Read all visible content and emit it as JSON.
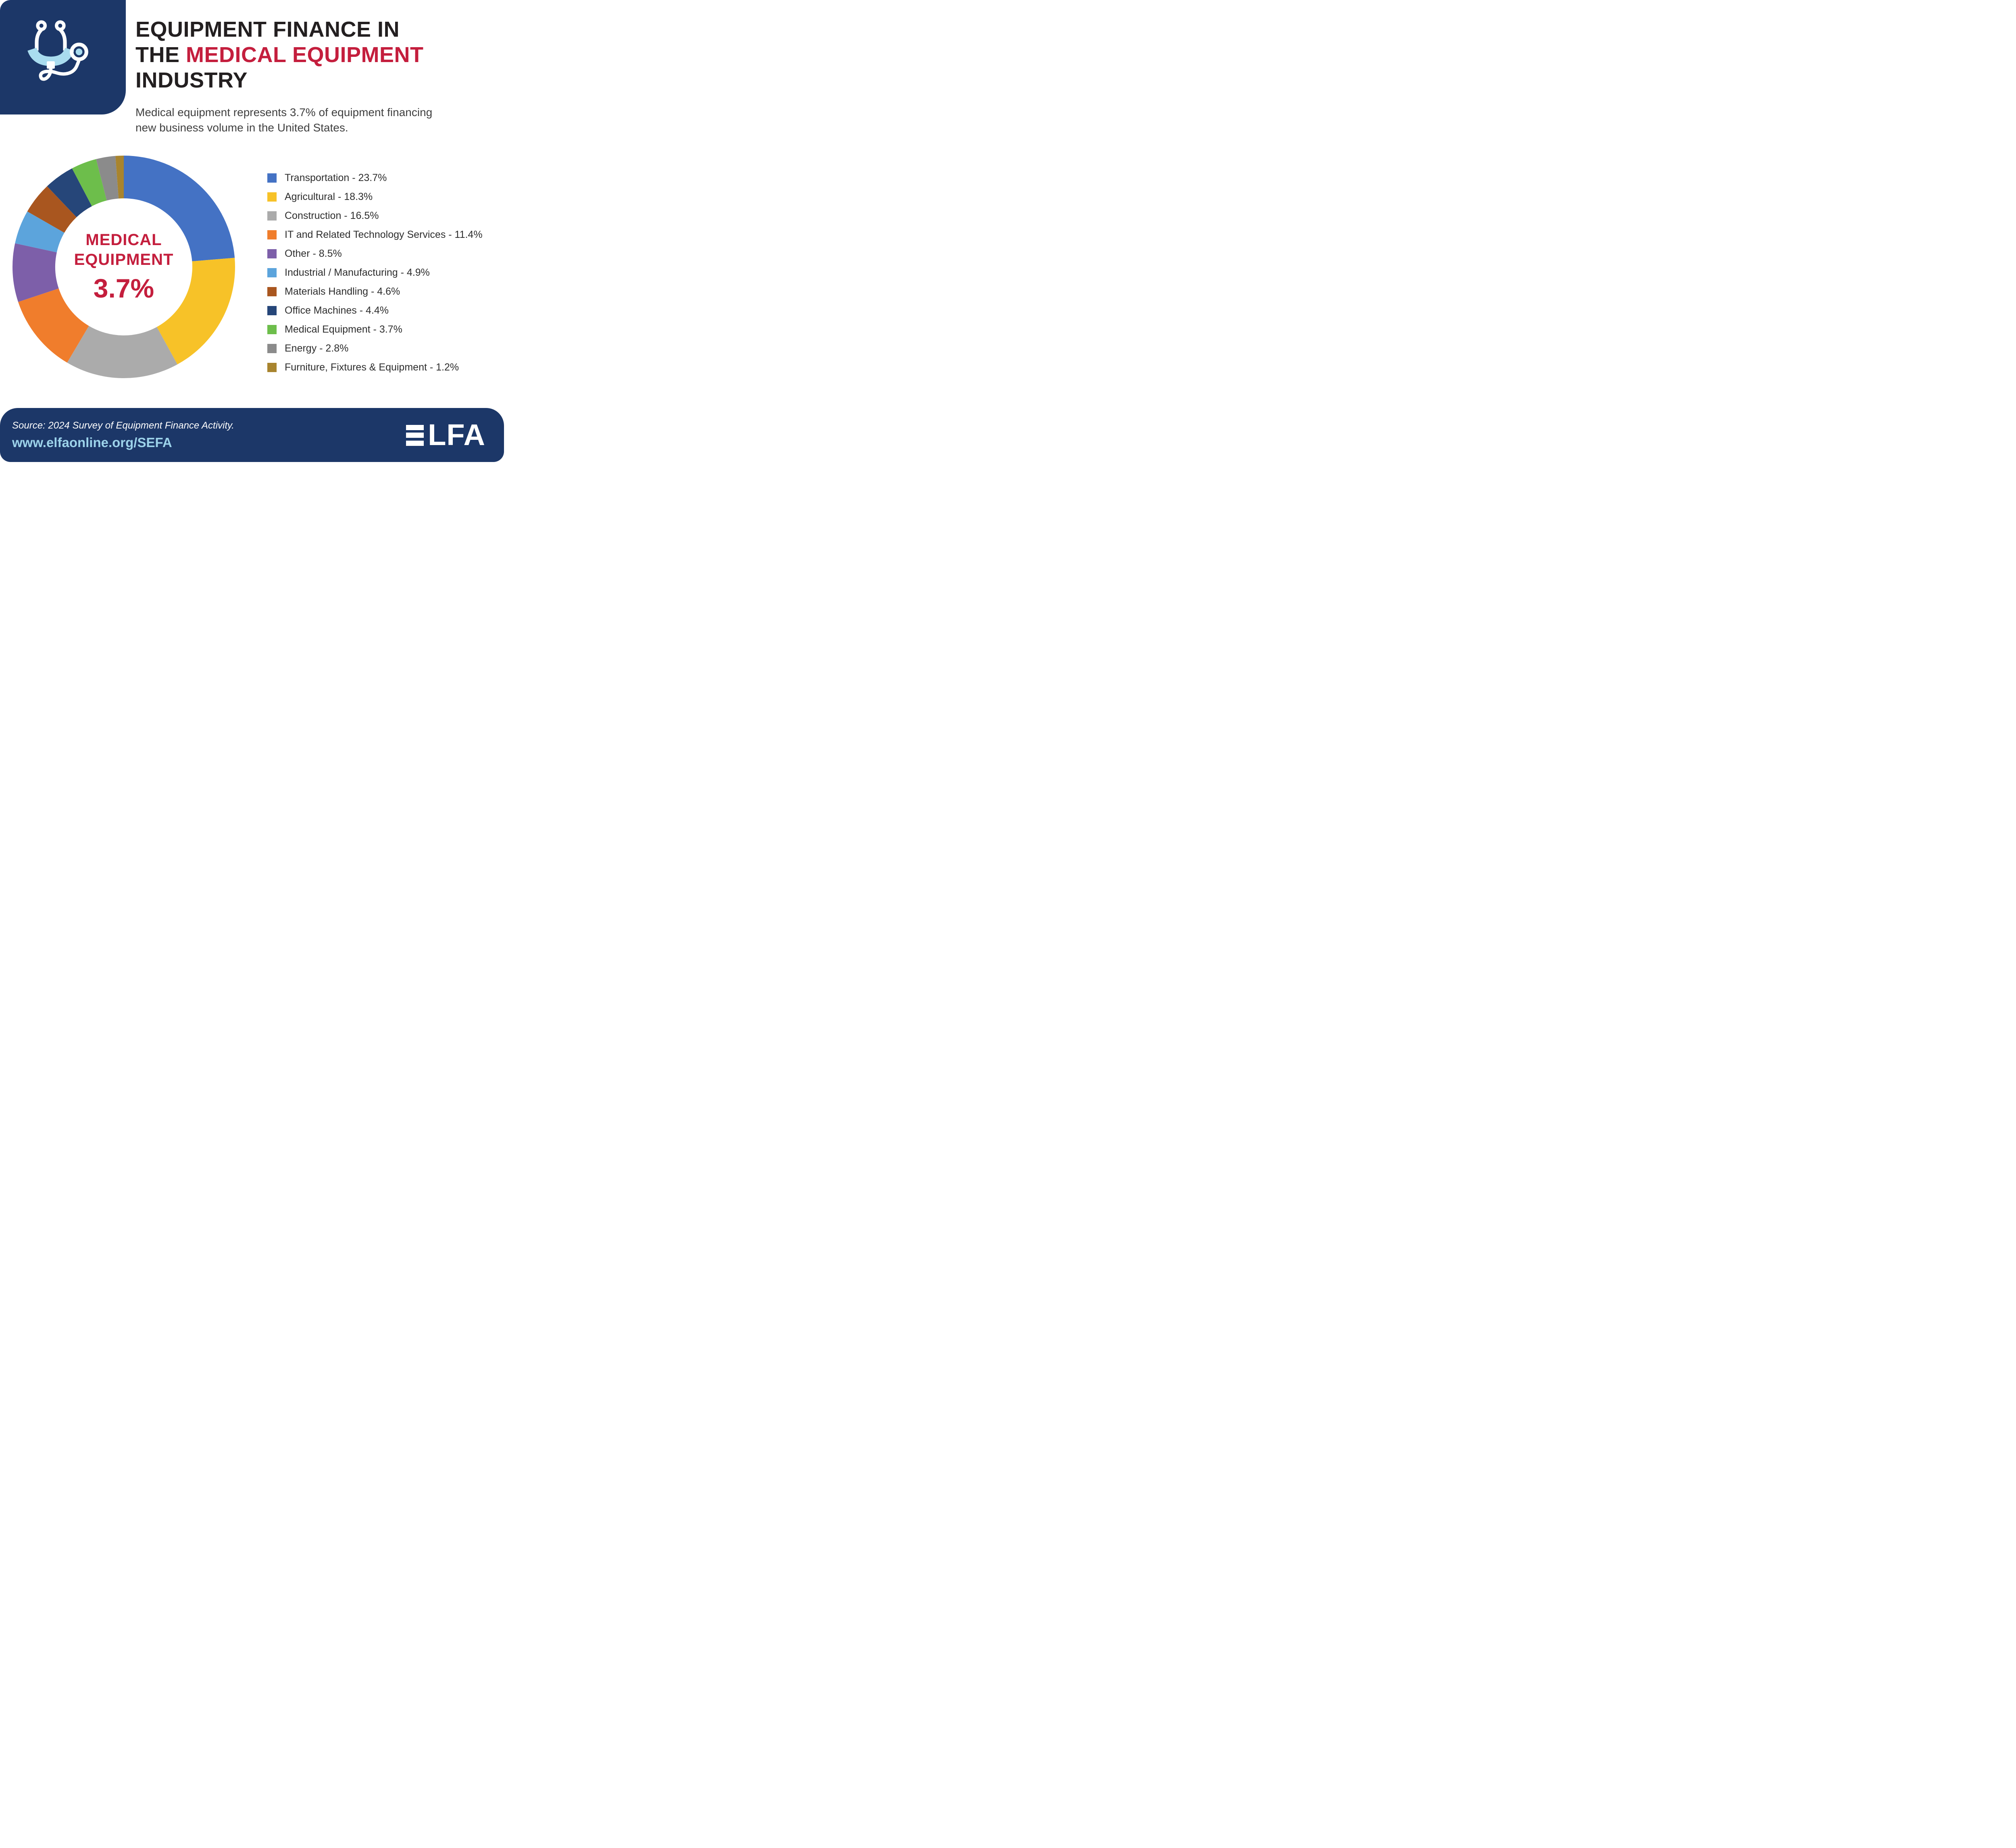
{
  "colors": {
    "navy": "#1C3768",
    "red": "#C41E3D",
    "lightblue": "#9CD2EA"
  },
  "header": {
    "title_line1": "EQUIPMENT FINANCE IN",
    "title_line2_dark": "THE ",
    "title_line2_red": "MEDICAL EQUIPMENT",
    "title_line3": "INDUSTRY",
    "subtitle_line1": "Medical equipment represents 3.7% of equipment financing",
    "subtitle_line2": "new business volume in the United States."
  },
  "donut": {
    "center_line1": "MEDICAL",
    "center_line2": "EQUIPMENT",
    "center_value": "3.7%"
  },
  "chart_data": {
    "type": "pie",
    "donut": true,
    "title": "Equipment finance new business volume share by equipment type (%)",
    "categories": [
      "Transportation",
      "Agricultural",
      "Construction",
      "IT and Related Technology Services",
      "Other",
      "Industrial / Manufacturing",
      "Materials Handling",
      "Office Machines",
      "Medical Equipment",
      "Energy",
      "Furniture, Fixtures & Equipment"
    ],
    "values": [
      23.7,
      18.3,
      16.5,
      11.4,
      8.5,
      4.9,
      4.6,
      4.4,
      3.7,
      2.8,
      1.2
    ],
    "colors": [
      "#4472C4",
      "#F7C228",
      "#ABABAB",
      "#F07D2C",
      "#7D5FA9",
      "#5CA4DC",
      "#A9561F",
      "#264679",
      "#6DBE4B",
      "#8B8B8B",
      "#A8842E"
    ],
    "unit": "%",
    "start_angle_deg": -90,
    "direction": "clockwise",
    "legend_position": "right",
    "center_label": [
      "MEDICAL",
      "EQUIPMENT",
      "3.7%"
    ]
  },
  "footer": {
    "source": "Source: 2024 Survey of Equipment Finance Activity.",
    "url": "www.elfaonline.org/SEFA",
    "logo_text": "LFA",
    "logo_name": "ELFA"
  }
}
